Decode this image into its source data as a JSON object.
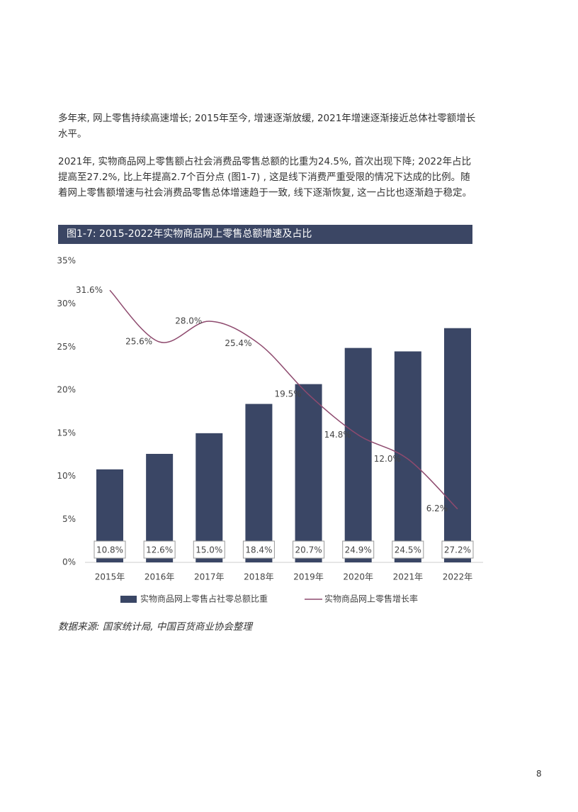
{
  "paragraphs": [
    "多年来, 网上零售持续高速增长; 2015年至今, 增速逐渐放缓, 2021年增速逐渐接近总体社零额增长水平。",
    "2021年, 实物商品网上零售额占社会消费品零售总额的比重为24.5%, 首次出现下降; 2022年占比提高至27.2%, 比上年提高2.7个百分点 (图1-7) , 这是线下消费严重受限的情况下达成的比例。随着网上零售额增速与社会消费品零售总体增速趋于一致, 线下逐渐恢复, 这一占比也逐渐趋于稳定。"
  ],
  "chart_data": {
    "type": "bar",
    "title": "图1-7: 2015-2022年实物商品网上零售总额增速及占比",
    "categories": [
      "2015年",
      "2016年",
      "2017年",
      "2018年",
      "2019年",
      "2020年",
      "2021年",
      "2022年"
    ],
    "series": [
      {
        "name": "实物商品网上零售占社零总额比重",
        "type": "bar",
        "color": "#3a4665",
        "values": [
          10.8,
          12.6,
          15.0,
          18.4,
          20.7,
          24.9,
          24.5,
          27.2
        ],
        "value_labels": [
          "10.8%",
          "12.6%",
          "15.0%",
          "18.4%",
          "20.7%",
          "24.9%",
          "24.5%",
          "27.2%"
        ]
      },
      {
        "name": "实物商品网上零售增长率",
        "type": "line",
        "color": "#8e4a6e",
        "values": [
          31.6,
          25.6,
          28.0,
          25.4,
          19.5,
          14.8,
          12.0,
          6.2
        ],
        "value_labels": [
          "31.6%",
          "25.6%",
          "28.0%",
          "25.4%",
          "19.5%",
          "14.8%",
          "12.0%",
          "6.2%"
        ]
      }
    ],
    "ylim": [
      0,
      35
    ],
    "yticks": [
      {
        "value": 0,
        "label": "0%"
      },
      {
        "value": 5,
        "label": "5%"
      },
      {
        "value": 10,
        "label": "10%"
      },
      {
        "value": 15,
        "label": "15%"
      },
      {
        "value": 20,
        "label": "20%"
      },
      {
        "value": 25,
        "label": "25%"
      },
      {
        "value": 30,
        "label": "30%"
      },
      {
        "value": 35,
        "label": "35%"
      }
    ],
    "grid": false,
    "legend": "bottom"
  },
  "source": "数据来源: 国家统计局, 中国百货商业协会整理",
  "page_number": 8
}
